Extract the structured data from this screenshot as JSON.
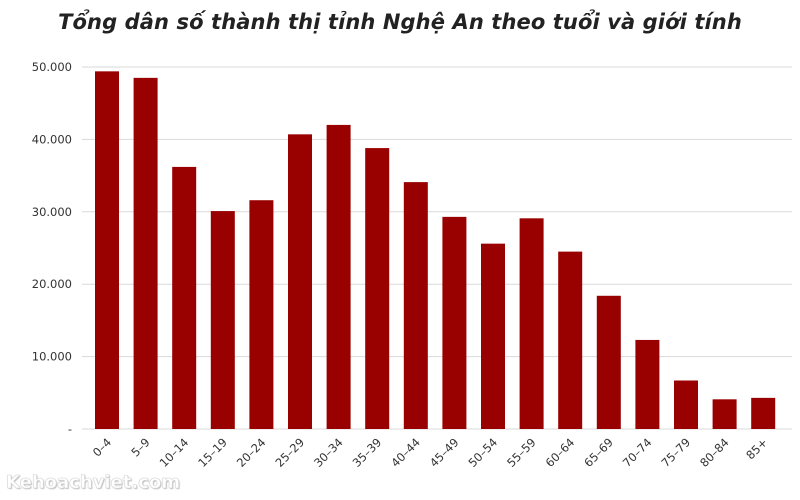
{
  "chart_data": {
    "type": "bar",
    "title": "Tổng dân số thành thị tỉnh Nghệ An theo tuổi và giới tính",
    "categories": [
      "0–4",
      "5–9",
      "10–14",
      "15–19",
      "20–24",
      "25–29",
      "30–34",
      "35–39",
      "40–44",
      "45–49",
      "50–54",
      "55–59",
      "60–64",
      "65–69",
      "70–74",
      "75–79",
      "80–84",
      "85+"
    ],
    "values": [
      49400,
      48500,
      36200,
      30100,
      31600,
      40700,
      42000,
      38800,
      34100,
      29300,
      25600,
      29100,
      24500,
      18400,
      12300,
      6700,
      4100,
      4300
    ],
    "ylim": [
      0,
      50000
    ],
    "yticks": [
      0,
      10000,
      20000,
      30000,
      40000,
      50000
    ],
    "ytick_labels": [
      "-",
      "10.000",
      "20.000",
      "30.000",
      "40.000",
      "50.000"
    ],
    "xlabel": "",
    "ylabel": "",
    "grid": true,
    "bar_color": "#990000"
  },
  "watermark": "Kehoachviet.com"
}
